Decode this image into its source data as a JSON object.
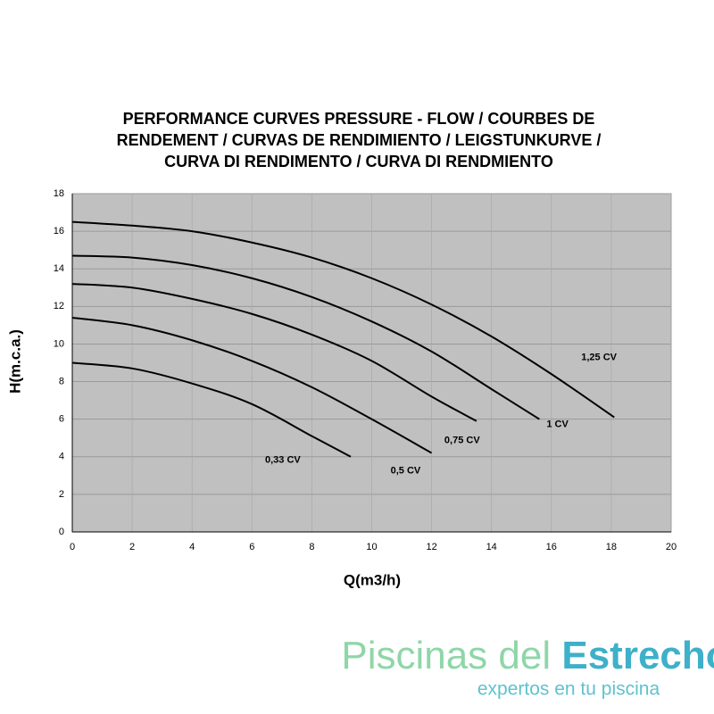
{
  "chart_data": {
    "type": "line",
    "title": [
      "PERFORMANCE CURVES  PRESSURE - FLOW    /  COURBES DE",
      "RENDEMENT  /  CURVAS DE RENDIMIENTO  /  LEIGSTUNKURVE  /",
      "CURVA DI RENDIMENTO  /  CURVA DI RENDMIENTO"
    ],
    "x_label": "Q(m3/h)",
    "y_label": "H(m.c.a.)",
    "xlim": [
      0,
      20
    ],
    "xticks": [
      0,
      2,
      4,
      6,
      8,
      10,
      12,
      14,
      16,
      18,
      20
    ],
    "ylim": [
      0,
      18
    ],
    "yticks": [
      0,
      2,
      4,
      6,
      8,
      10,
      12,
      14,
      16,
      18
    ],
    "grid": true,
    "background": "#c0c0c0",
    "series": [
      {
        "name": "0,33 CV",
        "color": "#000000",
        "x": [
          0,
          2,
          4,
          6,
          8,
          9.3
        ],
        "values": [
          9.0,
          8.7,
          7.9,
          6.8,
          5.1,
          4.0
        ]
      },
      {
        "name": "0,5 CV",
        "color": "#000000",
        "x": [
          0,
          2,
          4,
          6,
          8,
          10,
          12
        ],
        "values": [
          11.4,
          11.0,
          10.2,
          9.1,
          7.7,
          6.0,
          4.2
        ]
      },
      {
        "name": "0,75 CV",
        "color": "#000000",
        "x": [
          0,
          2,
          4,
          6,
          8,
          10,
          12,
          13.5
        ],
        "values": [
          13.2,
          13.0,
          12.4,
          11.6,
          10.5,
          9.1,
          7.2,
          5.9
        ]
      },
      {
        "name": "1 CV",
        "color": "#000000",
        "x": [
          0,
          2,
          4,
          6,
          8,
          10,
          12,
          14,
          15.6
        ],
        "values": [
          14.7,
          14.6,
          14.2,
          13.5,
          12.5,
          11.2,
          9.6,
          7.6,
          6.0
        ]
      },
      {
        "name": "1,25 CV",
        "color": "#000000",
        "x": [
          0,
          2,
          4,
          6,
          8,
          10,
          12,
          14,
          16,
          18.1
        ],
        "values": [
          16.5,
          16.3,
          16.0,
          15.4,
          14.6,
          13.5,
          12.1,
          10.4,
          8.4,
          6.1
        ]
      }
    ]
  },
  "branding": {
    "name_part1": "Piscinas del ",
    "name_part2": "Estrecho",
    "tagline": "expertos en tu piscina"
  }
}
